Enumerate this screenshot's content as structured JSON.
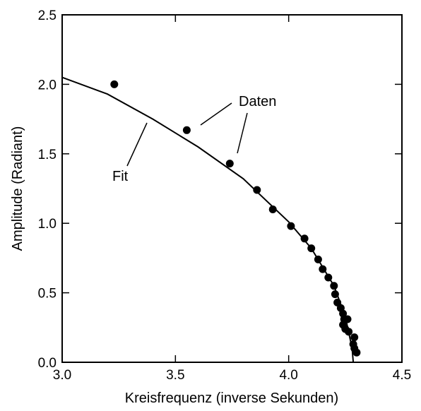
{
  "chart_data": {
    "type": "scatter",
    "title": "",
    "xlabel": "Kreisfrequenz  (inverse Sekunden)",
    "ylabel": "Amplitude  (Radiant)",
    "xlim": [
      3.0,
      4.5
    ],
    "ylim": [
      0.0,
      2.5
    ],
    "xticks": [
      "3.0",
      "3.5",
      "4.0",
      "4.5"
    ],
    "yticks": [
      "0.0",
      "0.5",
      "1.0",
      "1.5",
      "2.0",
      "2.5"
    ],
    "grid": false,
    "legend": "none",
    "series": [
      {
        "name": "Daten",
        "kind": "points",
        "points": [
          [
            3.23,
            2.0
          ],
          [
            3.55,
            1.67
          ],
          [
            3.74,
            1.43
          ],
          [
            3.86,
            1.24
          ],
          [
            3.93,
            1.1
          ],
          [
            4.01,
            0.98
          ],
          [
            4.07,
            0.89
          ],
          [
            4.1,
            0.82
          ],
          [
            4.13,
            0.74
          ],
          [
            4.15,
            0.67
          ],
          [
            4.175,
            0.61
          ],
          [
            4.2,
            0.55
          ],
          [
            4.205,
            0.49
          ],
          [
            4.215,
            0.43
          ],
          [
            4.23,
            0.39
          ],
          [
            4.24,
            0.35
          ],
          [
            4.245,
            0.31
          ],
          [
            4.26,
            0.31
          ],
          [
            4.24,
            0.27
          ],
          [
            4.25,
            0.24
          ],
          [
            4.265,
            0.22
          ],
          [
            4.29,
            0.18
          ],
          [
            4.285,
            0.13
          ],
          [
            4.29,
            0.1
          ],
          [
            4.3,
            0.07
          ]
        ]
      },
      {
        "name": "Fit",
        "kind": "line",
        "points": [
          [
            3.0,
            2.05
          ],
          [
            3.2,
            1.93
          ],
          [
            3.4,
            1.75
          ],
          [
            3.6,
            1.55
          ],
          [
            3.8,
            1.32
          ],
          [
            4.0,
            1.01
          ],
          [
            4.1,
            0.82
          ],
          [
            4.2,
            0.55
          ],
          [
            4.25,
            0.33
          ],
          [
            4.28,
            0.1
          ],
          [
            4.285,
            0.0
          ]
        ]
      }
    ],
    "annotations": [
      {
        "text": "Daten"
      },
      {
        "text": "Fit"
      }
    ]
  }
}
